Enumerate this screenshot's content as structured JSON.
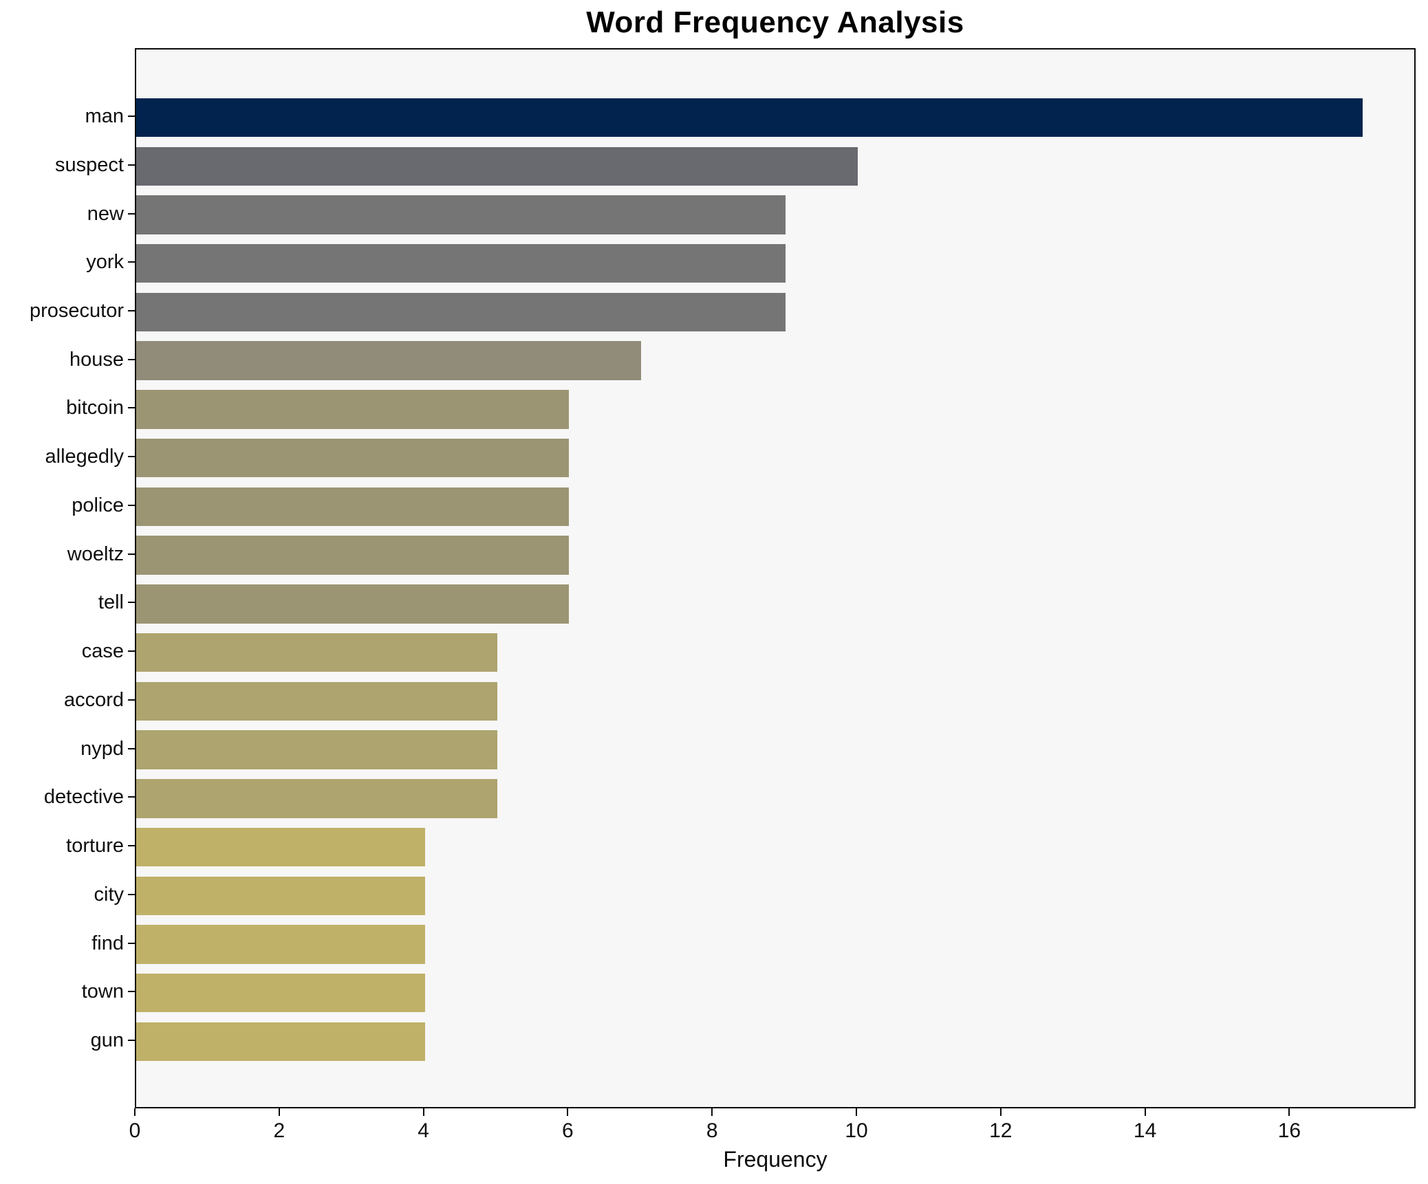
{
  "title": "Word Frequency Analysis",
  "chart_data": {
    "type": "bar",
    "orientation": "horizontal",
    "title": "Word Frequency Analysis",
    "xlabel": "Frequency",
    "ylabel": "",
    "categories": [
      "man",
      "suspect",
      "new",
      "york",
      "prosecutor",
      "house",
      "bitcoin",
      "allegedly",
      "police",
      "woeltz",
      "tell",
      "case",
      "accord",
      "nypd",
      "detective",
      "torture",
      "city",
      "find",
      "town",
      "gun"
    ],
    "values": [
      17,
      10,
      9,
      9,
      9,
      7,
      6,
      6,
      6,
      6,
      6,
      5,
      5,
      5,
      5,
      4,
      4,
      4,
      4,
      4
    ],
    "bar_colors": [
      "#01234e",
      "#696a70",
      "#757576",
      "#757576",
      "#757576",
      "#918c7a",
      "#9c9574",
      "#9c9574",
      "#9c9574",
      "#9c9574",
      "#9c9574",
      "#ada46f",
      "#ada46f",
      "#ada46f",
      "#ada46f",
      "#bfb168",
      "#bfb168",
      "#bfb168",
      "#bfb168",
      "#bfb168"
    ],
    "xlim": [
      0,
      17.75
    ],
    "xticks": [
      0,
      2,
      4,
      6,
      8,
      10,
      12,
      14,
      16
    ],
    "grid": false,
    "legend": false,
    "plot_background": "#f7f7f7",
    "figure_background": "#ffffff",
    "spine_color": "#0b0b0b",
    "bar_height_fraction": 0.8
  }
}
